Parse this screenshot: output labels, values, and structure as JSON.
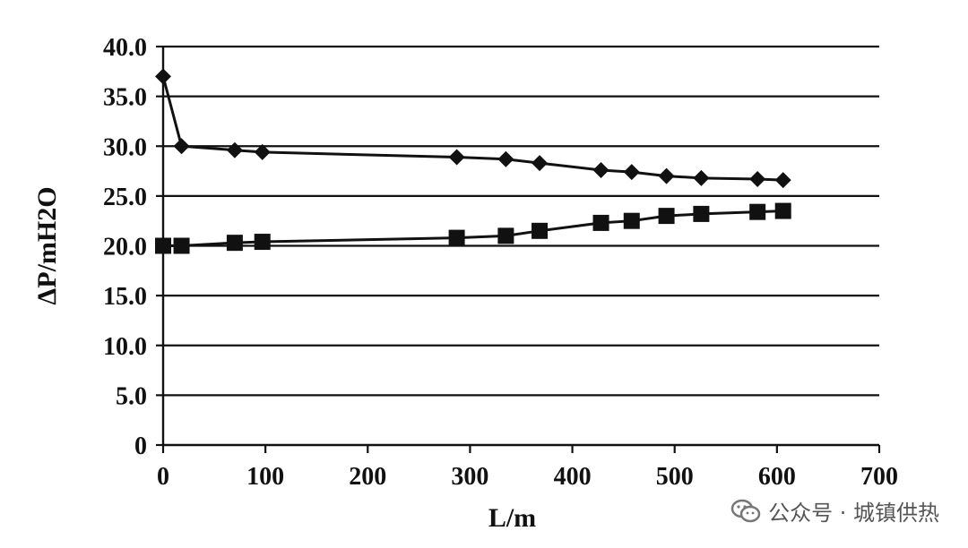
{
  "chart_data": {
    "type": "line",
    "xlabel": "L/m",
    "ylabel": "ΔP/mH2O",
    "xlim": [
      0,
      700
    ],
    "ylim": [
      0,
      40
    ],
    "x_ticks": [
      "0",
      "100",
      "200",
      "300",
      "400",
      "500",
      "600",
      "700"
    ],
    "y_ticks": [
      "0",
      "5.0",
      "10.0",
      "15.0",
      "20.0",
      "25.0",
      "30.0",
      "35.0",
      "40.0"
    ],
    "grid": "horizontal",
    "series": [
      {
        "marker": "diamond",
        "color": "#111111",
        "points": [
          [
            0,
            37.0
          ],
          [
            18,
            30.0
          ],
          [
            70,
            29.6
          ],
          [
            97,
            29.4
          ],
          [
            287,
            28.9
          ],
          [
            335,
            28.7
          ],
          [
            368,
            28.3
          ],
          [
            428,
            27.6
          ],
          [
            458,
            27.4
          ],
          [
            492,
            27.0
          ],
          [
            526,
            26.8
          ],
          [
            581,
            26.7
          ],
          [
            606,
            26.6
          ]
        ]
      },
      {
        "marker": "square",
        "color": "#111111",
        "points": [
          [
            0,
            20.0
          ],
          [
            18,
            20.0
          ],
          [
            70,
            20.3
          ],
          [
            97,
            20.4
          ],
          [
            287,
            20.8
          ],
          [
            335,
            21.0
          ],
          [
            368,
            21.5
          ],
          [
            428,
            22.3
          ],
          [
            458,
            22.5
          ],
          [
            492,
            23.0
          ],
          [
            526,
            23.2
          ],
          [
            581,
            23.4
          ],
          [
            606,
            23.5
          ]
        ]
      }
    ]
  },
  "watermark": {
    "text": "公众号 · 城镇供热"
  }
}
